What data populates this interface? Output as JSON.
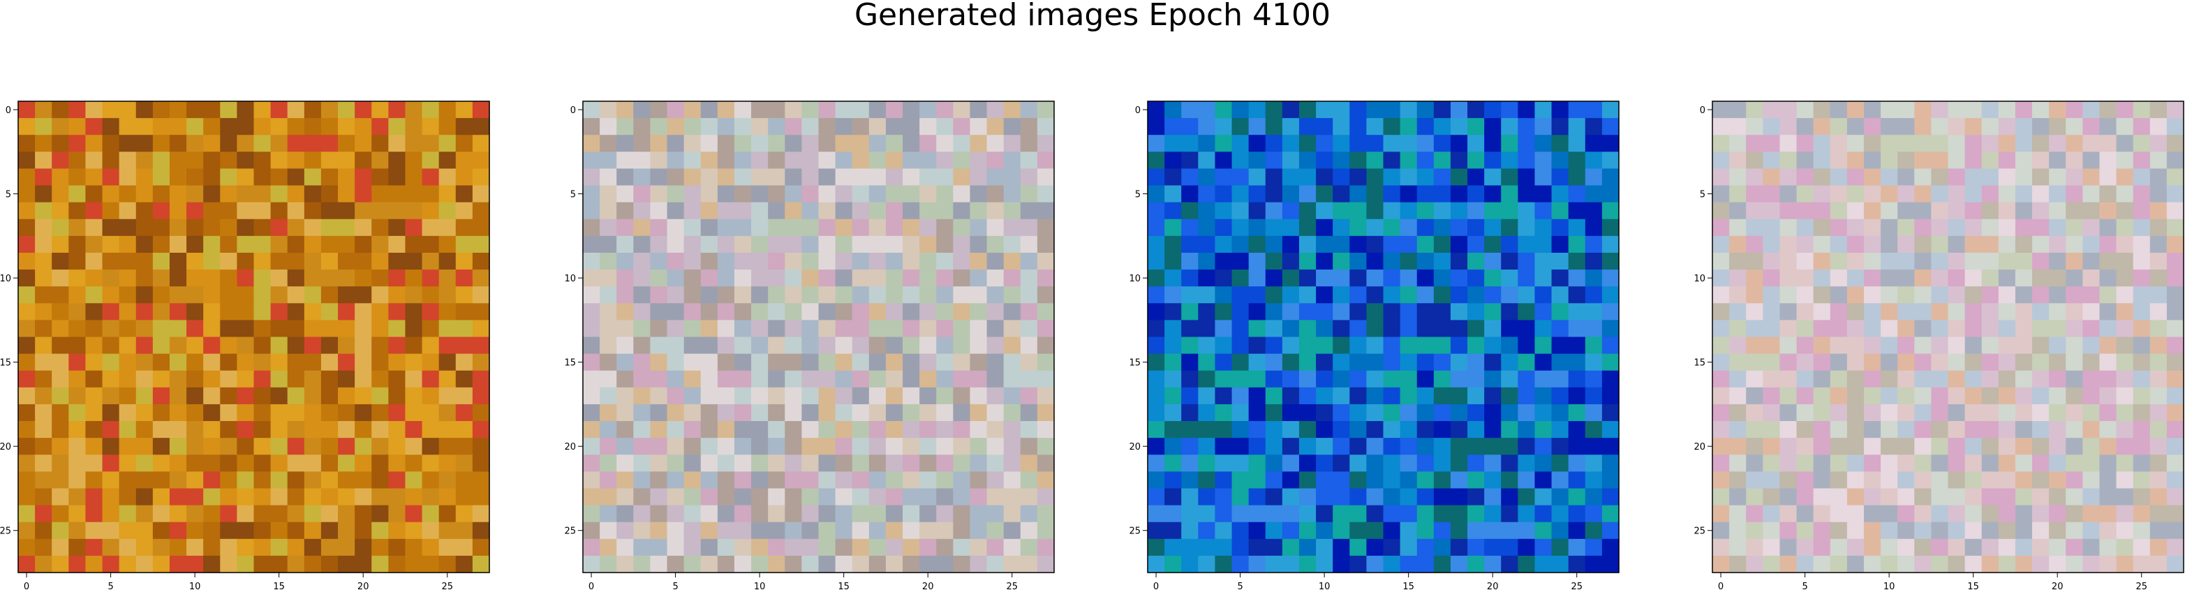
{
  "figure": {
    "title": "Generated images Epoch 4100"
  },
  "chart_data": [
    {
      "type": "heatmap",
      "palette": "warm",
      "grid_size": 28,
      "xlim": [
        0,
        27
      ],
      "ylim": [
        27,
        0
      ],
      "xticks": [
        0,
        5,
        10,
        15,
        20,
        25
      ],
      "yticks": [
        0,
        5,
        10,
        15,
        20,
        25
      ],
      "xtick_labels": [
        "0",
        "5",
        "10",
        "15",
        "20",
        "25"
      ],
      "ytick_labels": [
        "0",
        "5",
        "10",
        "15",
        "20",
        "25"
      ],
      "grid": false,
      "colors": [
        "#c47a0a",
        "#d89016",
        "#b86c0a",
        "#e0a020",
        "#c8b43a",
        "#a45a08",
        "#d2452a",
        "#8a4a10",
        "#e0b050",
        "#cc8a1a"
      ]
    },
    {
      "type": "heatmap",
      "palette": "pastel",
      "grid_size": 28,
      "xlim": [
        0,
        27
      ],
      "ylim": [
        27,
        0
      ],
      "xticks": [
        0,
        5,
        10,
        15,
        20,
        25
      ],
      "yticks": [
        0,
        5,
        10,
        15,
        20,
        25
      ],
      "xtick_labels": [
        "0",
        "5",
        "10",
        "15",
        "20",
        "25"
      ],
      "ytick_labels": [
        "0",
        "5",
        "10",
        "15",
        "20",
        "25"
      ],
      "grid": false,
      "colors": [
        "#c8b8c8",
        "#b8c8b0",
        "#d8c8b8",
        "#a8b8c8",
        "#d0a8c0",
        "#b0a098",
        "#c0d0d0",
        "#d8b890",
        "#9aa0b0",
        "#e0d8d8"
      ]
    },
    {
      "type": "heatmap",
      "palette": "blue",
      "grid_size": 28,
      "xlim": [
        0,
        27
      ],
      "ylim": [
        27,
        0
      ],
      "xticks": [
        0,
        5,
        10,
        15,
        20,
        25
      ],
      "yticks": [
        0,
        5,
        10,
        15,
        20,
        25
      ],
      "xtick_labels": [
        "0",
        "5",
        "10",
        "15",
        "20",
        "25"
      ],
      "ytick_labels": [
        "0",
        "5",
        "10",
        "15",
        "20",
        "25"
      ],
      "grid": false,
      "colors": [
        "#0a4ad8",
        "#0a8ad0",
        "#0a2aa8",
        "#10a8a0",
        "#1a60e8",
        "#0070c0",
        "#2aa0d8",
        "#0018b0",
        "#0a6a70",
        "#3a8ae8"
      ]
    },
    {
      "type": "heatmap",
      "palette": "pastel-pink",
      "grid_size": 28,
      "xlim": [
        0,
        27
      ],
      "ylim": [
        27,
        0
      ],
      "xticks": [
        0,
        5,
        10,
        15,
        20,
        25
      ],
      "yticks": [
        0,
        5,
        10,
        15,
        20,
        25
      ],
      "xtick_labels": [
        "0",
        "5",
        "10",
        "15",
        "20",
        "25"
      ],
      "ytick_labels": [
        "0",
        "5",
        "10",
        "15",
        "20",
        "25"
      ],
      "grid": false,
      "colors": [
        "#d8c0d0",
        "#c8d0b8",
        "#e0c8c8",
        "#b8c8d8",
        "#d8a8c8",
        "#c0b8a8",
        "#d0d8d0",
        "#e0b8a0",
        "#a8b0c0",
        "#e8d8e0"
      ]
    }
  ]
}
